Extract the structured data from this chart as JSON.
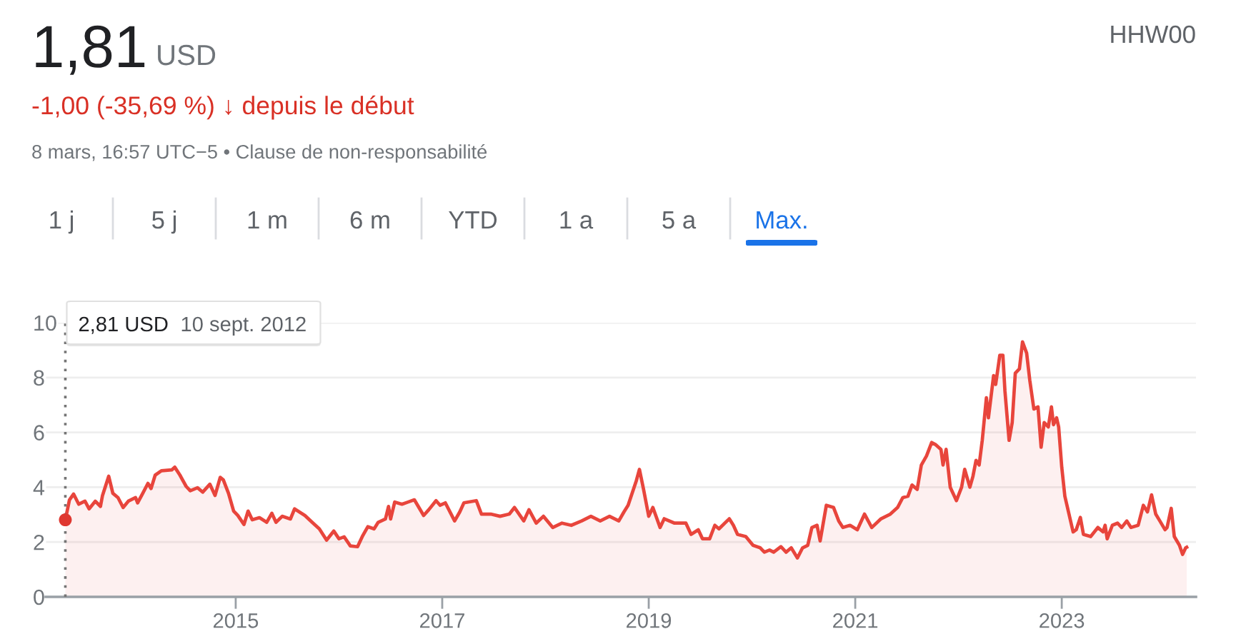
{
  "chart_data": {
    "type": "area",
    "title": "1,81",
    "subtitle": "-1,00 (-35,69 %) ↓ depuis le début",
    "annotations": [
      "USD",
      "8 mars, 16:57 UTC−5 • Clause de non-responsabilité",
      "HHW00",
      "1 j",
      "5 j",
      "1 m",
      "6 m",
      "YTD",
      "1 a",
      "5 a",
      "Max.",
      "2,81 USD",
      "10 sept. 2012"
    ],
    "xlim": [
      2013.16,
      2024.3
    ],
    "xticks": [
      2015,
      2017,
      2019,
      2021,
      2023
    ],
    "ylim": [
      0,
      10
    ],
    "yticks": [
      0,
      2,
      4,
      6,
      8,
      10
    ],
    "grid": "y",
    "ref_lines": [
      {
        "axis": "x",
        "value": 2013.35,
        "color": "#757575",
        "line_style": "dotted"
      }
    ],
    "series": [
      {
        "color": "#e8453c",
        "x": [
          2013.35,
          2013.39,
          2013.43,
          2013.48,
          2013.54,
          2013.58,
          2013.64,
          2013.69,
          2013.71,
          2013.77,
          2013.81,
          2013.86,
          2013.91,
          2013.96,
          2014.03,
          2014.05,
          2014.1,
          2014.15,
          2014.18,
          2014.22,
          2014.28,
          2014.38,
          2014.41,
          2014.46,
          2014.52,
          2014.56,
          2014.63,
          2014.68,
          2014.75,
          2014.8,
          2014.85,
          2014.88,
          2014.93,
          2014.98,
          2015.02,
          2015.08,
          2015.12,
          2015.16,
          2015.23,
          2015.3,
          2015.35,
          2015.39,
          2015.45,
          2015.53,
          2015.57,
          2015.67,
          2015.74,
          2015.81,
          2015.88,
          2015.95,
          2016.0,
          2016.05,
          2016.11,
          2016.18,
          2016.23,
          2016.28,
          2016.34,
          2016.38,
          2016.45,
          2016.48,
          2016.5,
          2016.54,
          2016.61,
          2016.67,
          2016.73,
          2016.82,
          2016.87,
          2016.94,
          2016.98,
          2017.03,
          2017.12,
          2017.17,
          2017.21,
          2017.33,
          2017.38,
          2017.47,
          2017.56,
          2017.65,
          2017.7,
          2017.79,
          2017.84,
          2017.91,
          2017.98,
          2018.07,
          2018.16,
          2018.25,
          2018.35,
          2018.44,
          2018.53,
          2018.62,
          2018.71,
          2018.76,
          2018.8,
          2018.88,
          2018.91,
          2018.95,
          2019.0,
          2019.04,
          2019.11,
          2019.15,
          2019.25,
          2019.36,
          2019.41,
          2019.48,
          2019.52,
          2019.59,
          2019.64,
          2019.68,
          2019.78,
          2019.82,
          2019.86,
          2019.94,
          2020.01,
          2020.08,
          2020.12,
          2020.17,
          2020.21,
          2020.28,
          2020.33,
          2020.38,
          2020.44,
          2020.49,
          2020.54,
          2020.58,
          2020.63,
          2020.66,
          2020.72,
          2020.79,
          2020.84,
          2020.88,
          2020.95,
          2021.02,
          2021.09,
          2021.16,
          2021.25,
          2021.34,
          2021.41,
          2021.46,
          2021.51,
          2021.55,
          2021.6,
          2021.64,
          2021.69,
          2021.74,
          2021.78,
          2021.83,
          2021.85,
          2021.88,
          2021.92,
          2021.98,
          2022.03,
          2022.06,
          2022.11,
          2022.14,
          2022.17,
          2022.2,
          2022.23,
          2022.27,
          2022.29,
          2022.34,
          2022.36,
          2022.4,
          2022.43,
          2022.45,
          2022.49,
          2022.52,
          2022.55,
          2022.59,
          2022.62,
          2022.66,
          2022.69,
          2022.73,
          2022.77,
          2022.8,
          2022.83,
          2022.87,
          2022.9,
          2022.92,
          2022.95,
          2022.97,
          2023.0,
          2023.03,
          2023.07,
          2023.11,
          2023.14,
          2023.18,
          2023.21,
          2023.28,
          2023.35,
          2023.4,
          2023.42,
          2023.44,
          2023.49,
          2023.54,
          2023.58,
          2023.63,
          2023.67,
          2023.74,
          2023.79,
          2023.83,
          2023.87,
          2023.91,
          2023.95,
          2024.0,
          2024.02,
          2024.06,
          2024.09,
          2024.14,
          2024.17,
          2024.2,
          2024.21
        ],
        "values": [
          2.81,
          3.54,
          3.75,
          3.38,
          3.49,
          3.21,
          3.49,
          3.3,
          3.7,
          4.4,
          3.78,
          3.62,
          3.26,
          3.49,
          3.62,
          3.43,
          3.78,
          4.14,
          3.95,
          4.44,
          4.6,
          4.63,
          4.73,
          4.44,
          4.03,
          3.87,
          3.98,
          3.82,
          4.11,
          3.7,
          4.36,
          4.27,
          3.78,
          3.13,
          2.97,
          2.64,
          3.13,
          2.81,
          2.89,
          2.72,
          3.05,
          2.72,
          2.94,
          2.84,
          3.21,
          2.97,
          2.72,
          2.48,
          2.07,
          2.4,
          2.12,
          2.19,
          1.86,
          1.83,
          2.23,
          2.56,
          2.48,
          2.72,
          2.84,
          3.3,
          2.84,
          3.46,
          3.38,
          3.46,
          3.54,
          2.97,
          3.18,
          3.51,
          3.34,
          3.43,
          2.77,
          3.1,
          3.43,
          3.51,
          3.02,
          3.02,
          2.94,
          3.02,
          3.26,
          2.77,
          3.18,
          2.69,
          2.94,
          2.53,
          2.69,
          2.61,
          2.77,
          2.94,
          2.77,
          2.94,
          2.77,
          3.1,
          3.34,
          4.24,
          4.65,
          3.92,
          2.94,
          3.26,
          2.53,
          2.85,
          2.69,
          2.69,
          2.28,
          2.45,
          2.12,
          2.12,
          2.61,
          2.48,
          2.85,
          2.61,
          2.28,
          2.2,
          1.88,
          1.79,
          1.63,
          1.71,
          1.63,
          1.83,
          1.63,
          1.79,
          1.42,
          1.79,
          1.88,
          2.53,
          2.61,
          2.04,
          3.34,
          3.26,
          2.77,
          2.53,
          2.61,
          2.45,
          3.02,
          2.53,
          2.85,
          3.02,
          3.26,
          3.62,
          3.67,
          4.08,
          3.92,
          4.81,
          5.14,
          5.63,
          5.55,
          5.38,
          4.81,
          5.38,
          4.0,
          3.51,
          4.0,
          4.65,
          4.0,
          4.4,
          4.98,
          4.81,
          5.71,
          7.26,
          6.53,
          8.07,
          7.75,
          8.81,
          8.81,
          7.5,
          5.71,
          6.36,
          8.16,
          8.32,
          9.3,
          8.89,
          7.91,
          6.85,
          6.93,
          5.46,
          6.36,
          6.2,
          6.93,
          6.28,
          6.53,
          6.2,
          4.73,
          3.67,
          3.02,
          2.37,
          2.45,
          2.9,
          2.28,
          2.2,
          2.53,
          2.37,
          2.61,
          2.12,
          2.61,
          2.69,
          2.53,
          2.77,
          2.53,
          2.61,
          3.34,
          3.1,
          3.72,
          3.02,
          2.77,
          2.45,
          2.53,
          3.23,
          2.2,
          1.88,
          1.55,
          1.79,
          1.81
        ]
      },
      {
        "type": "scatter",
        "color": "#df3730",
        "x": [
          2013.35
        ],
        "values": [
          2.81
        ]
      }
    ]
  }
}
